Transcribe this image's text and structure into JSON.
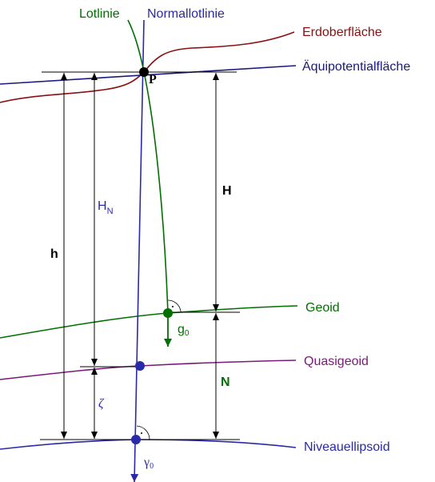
{
  "labels": {
    "lotlinie": "Lotlinie",
    "normallotlinie": "Normallotlinie",
    "erdoberflaeche": "Erdoberfläche",
    "aequipotentialflaeche": "Äquipotentialfläche",
    "geoid": "Geoid",
    "quasigeoid": "Quasigeoid",
    "niveauellipsoid": "Niveauellipsoid",
    "point": "P",
    "orthometric_height": "H",
    "normal_height": {
      "symbol": "H",
      "subscript": "N"
    },
    "ellipsoidal_height": "h",
    "geoid_undulation": "N",
    "height_anomaly": "ζ",
    "gravity": {
      "symbol": "g",
      "subscript": "0"
    },
    "normal_gravity": {
      "symbol": "γ",
      "subscript": "0"
    }
  }
}
